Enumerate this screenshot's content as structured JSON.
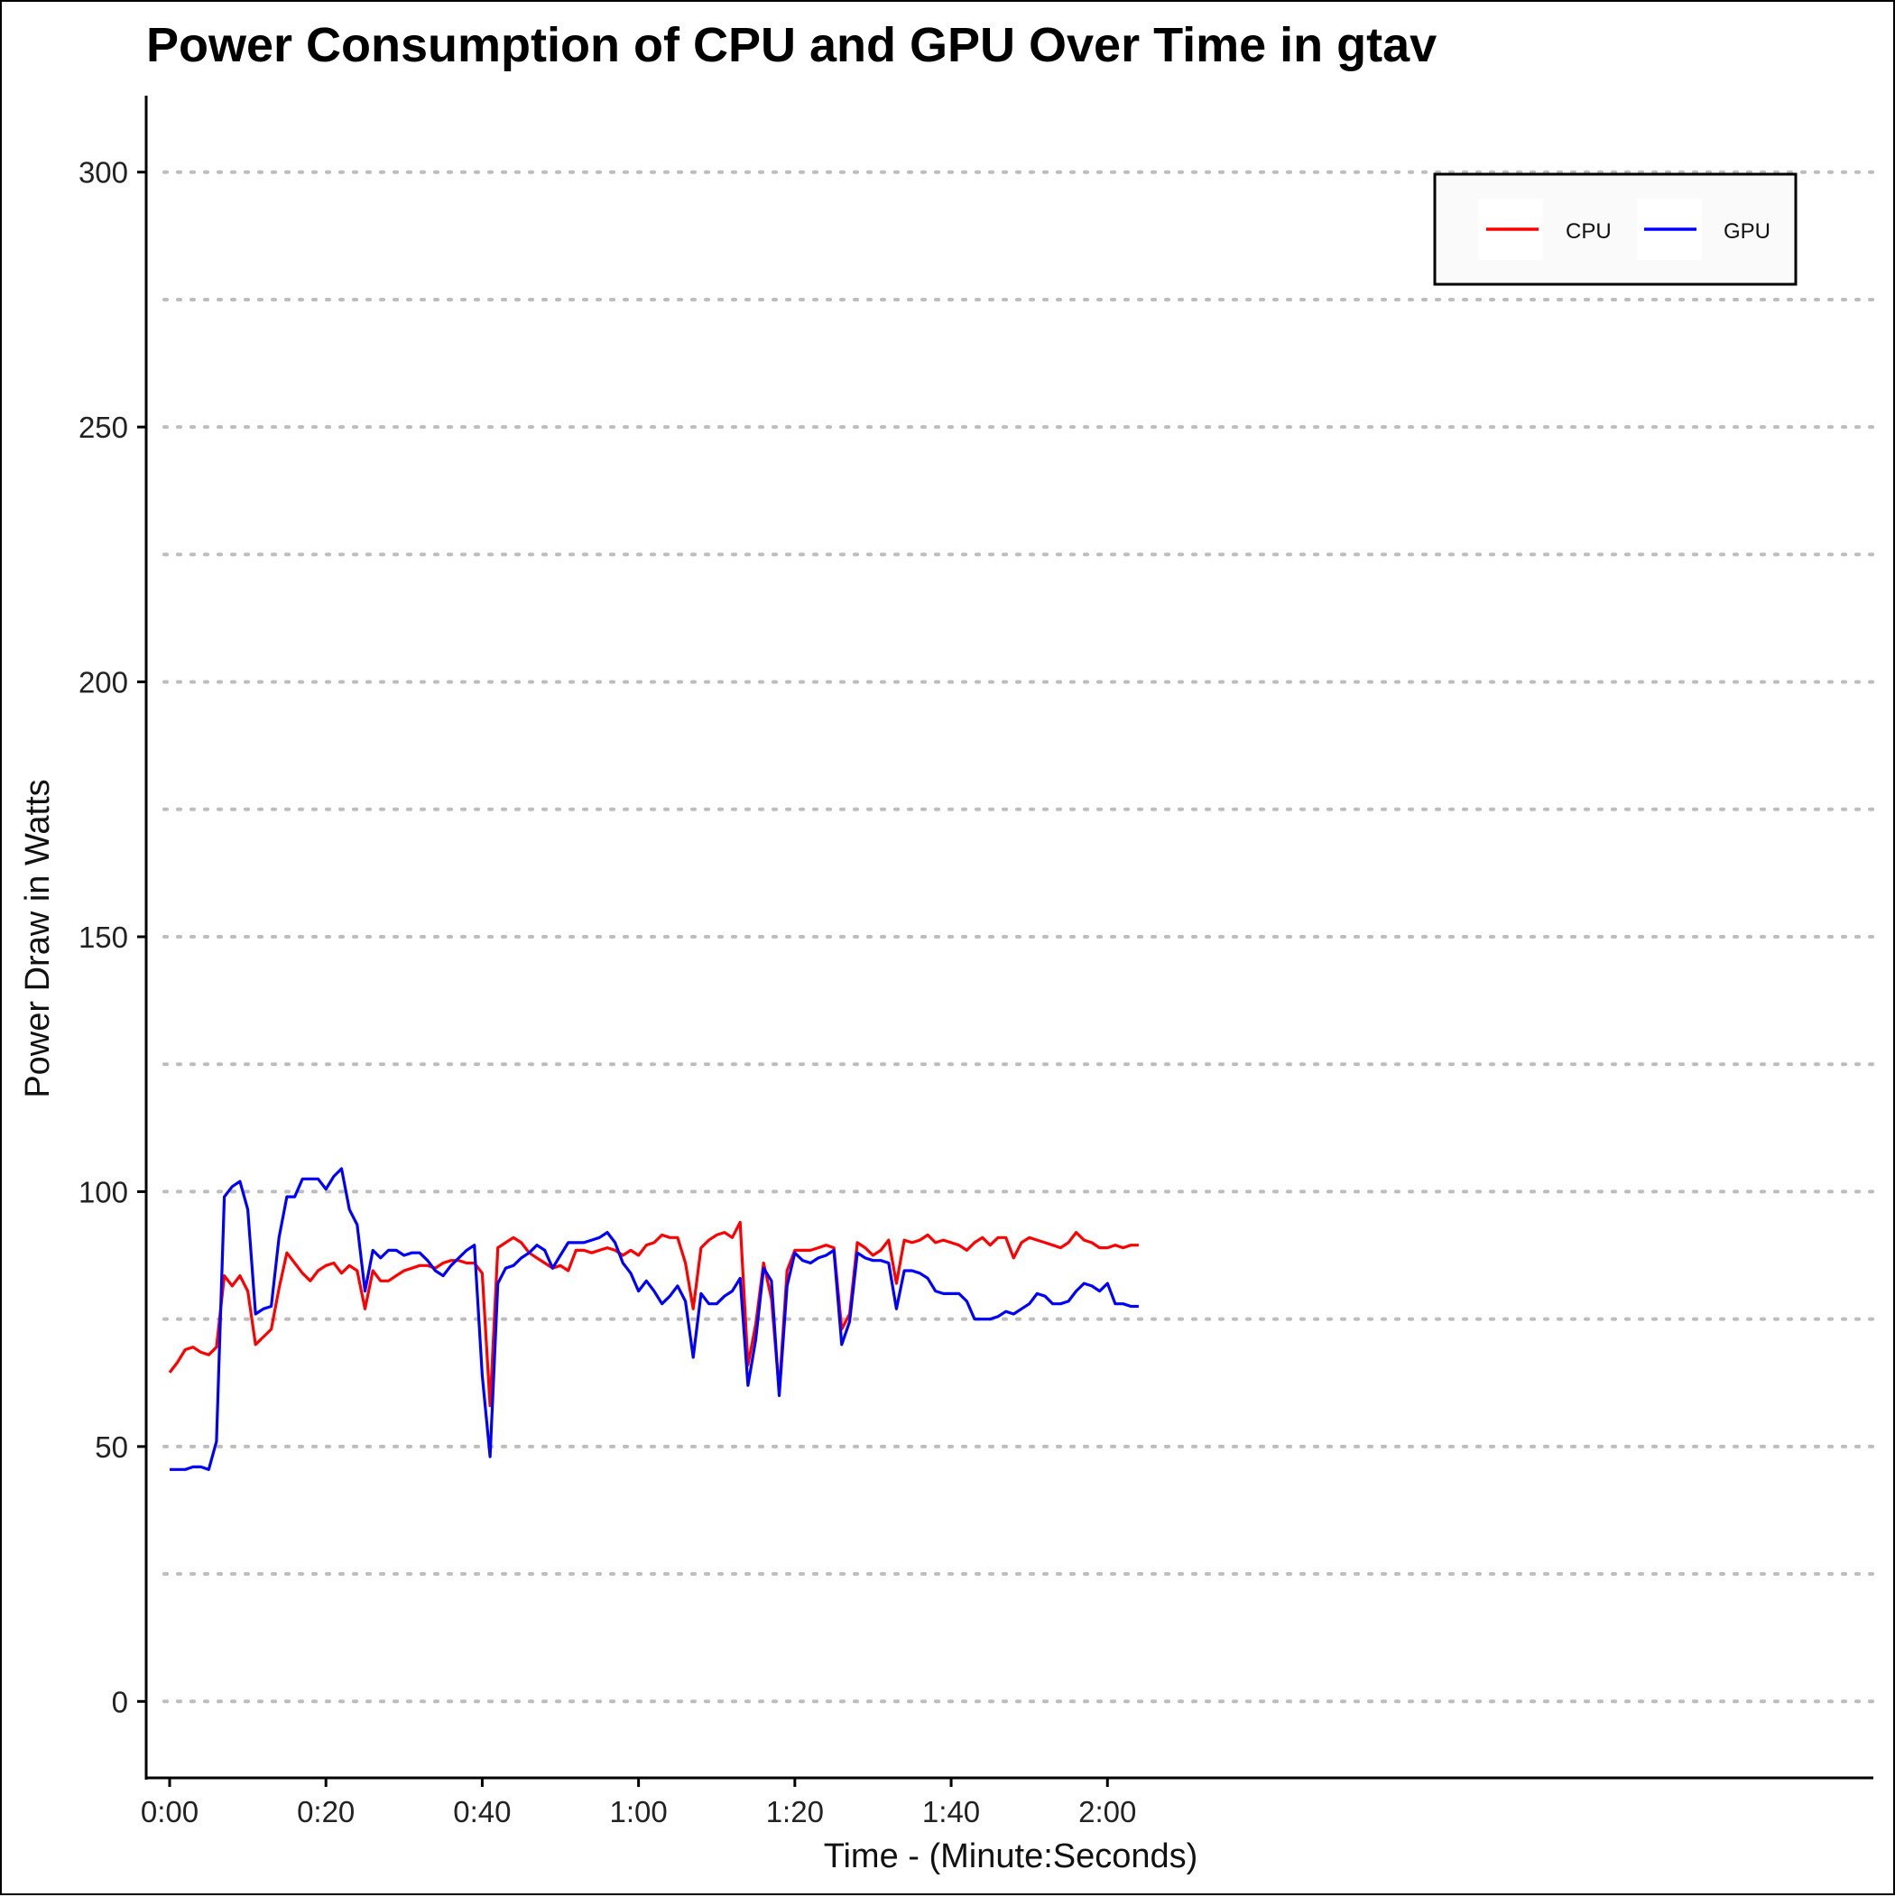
{
  "chart_data": {
    "type": "line",
    "title": "Power Consumption of CPU and GPU Over Time in gtav",
    "xlabel": "Time - (Minute:Seconds)",
    "ylabel": "Power Draw in Watts",
    "xlim": [
      -3,
      218
    ],
    "ylim": [
      -15,
      315
    ],
    "x_ticks": [
      0,
      20,
      40,
      60,
      80,
      100,
      120
    ],
    "x_tick_labels": [
      "0:00",
      "0:20",
      "0:40",
      "1:00",
      "1:20",
      "1:40",
      "2:00"
    ],
    "y_ticks": [
      0,
      50,
      100,
      150,
      200,
      250,
      300
    ],
    "y_tick_labels": [
      "0",
      "50",
      "100",
      "150",
      "200",
      "250",
      "300"
    ],
    "y_minor_grid": [
      25,
      75,
      125,
      175,
      225,
      275
    ],
    "grid": "horizontal dotted",
    "legend_position": "top-right",
    "series": [
      {
        "name": "CPU",
        "color": "#ff0000",
        "points": [
          [
            0,
            64.5
          ],
          [
            1,
            66.5
          ],
          [
            2,
            69
          ],
          [
            3,
            69.5
          ],
          [
            4,
            68.5
          ],
          [
            5,
            68
          ],
          [
            6,
            69.5
          ],
          [
            7,
            83.5
          ],
          [
            8,
            81.5
          ],
          [
            9,
            83.5
          ],
          [
            10,
            80.5
          ],
          [
            11,
            70
          ],
          [
            12,
            71.5
          ],
          [
            13,
            73
          ],
          [
            14,
            81
          ],
          [
            15,
            88
          ],
          [
            16,
            86
          ],
          [
            17,
            84
          ],
          [
            18,
            82.5
          ],
          [
            19,
            84.5
          ],
          [
            20,
            85.5
          ],
          [
            21,
            86
          ],
          [
            22,
            84
          ],
          [
            23,
            85.5
          ],
          [
            24,
            84.5
          ],
          [
            25,
            77
          ],
          [
            26,
            84.5
          ],
          [
            27,
            82.5
          ],
          [
            28,
            82.5
          ],
          [
            29,
            83.5
          ],
          [
            30,
            84.5
          ],
          [
            31,
            85
          ],
          [
            32,
            85.5
          ],
          [
            33,
            85.5
          ],
          [
            34,
            85
          ],
          [
            35,
            86
          ],
          [
            36,
            86.5
          ],
          [
            37,
            86.5
          ],
          [
            38,
            86
          ],
          [
            39,
            86
          ],
          [
            40,
            84
          ],
          [
            41,
            58
          ],
          [
            42,
            89
          ],
          [
            43,
            90
          ],
          [
            44,
            91
          ],
          [
            45,
            90
          ],
          [
            46,
            88
          ],
          [
            47,
            87
          ],
          [
            48,
            86
          ],
          [
            49,
            85
          ],
          [
            50,
            85.5
          ],
          [
            51,
            84.5
          ],
          [
            52,
            88.5
          ],
          [
            53,
            88.5
          ],
          [
            54,
            88
          ],
          [
            55,
            88.5
          ],
          [
            56,
            89
          ],
          [
            57,
            88.5
          ],
          [
            58,
            87.5
          ],
          [
            59,
            88.5
          ],
          [
            60,
            87.5
          ],
          [
            61,
            89.5
          ],
          [
            62,
            90
          ],
          [
            63,
            91.5
          ],
          [
            64,
            91
          ],
          [
            65,
            91
          ],
          [
            66,
            86
          ],
          [
            67,
            77
          ],
          [
            68,
            89
          ],
          [
            69,
            90.5
          ],
          [
            70,
            91.5
          ],
          [
            71,
            92
          ],
          [
            72,
            91
          ],
          [
            73,
            94
          ],
          [
            74,
            66
          ],
          [
            75,
            74
          ],
          [
            76,
            86
          ],
          [
            77,
            79
          ],
          [
            78,
            61
          ],
          [
            79,
            84.5
          ],
          [
            80,
            88.5
          ],
          [
            81,
            88.5
          ],
          [
            82,
            88.5
          ],
          [
            83,
            89
          ],
          [
            84,
            89.5
          ],
          [
            85,
            89
          ],
          [
            86,
            73
          ],
          [
            87,
            76
          ],
          [
            88,
            90
          ],
          [
            89,
            89
          ],
          [
            90,
            87.5
          ],
          [
            91,
            88.5
          ],
          [
            92,
            90.5
          ],
          [
            93,
            82
          ],
          [
            94,
            90.5
          ],
          [
            95,
            90
          ],
          [
            96,
            90.5
          ],
          [
            97,
            91.5
          ],
          [
            98,
            90
          ],
          [
            99,
            90.5
          ],
          [
            100,
            90
          ],
          [
            101,
            89.5
          ],
          [
            102,
            88.5
          ],
          [
            103,
            90
          ],
          [
            104,
            91
          ],
          [
            105,
            89.5
          ],
          [
            106,
            91
          ],
          [
            107,
            91
          ],
          [
            108,
            87
          ],
          [
            109,
            90
          ],
          [
            110,
            91
          ],
          [
            111,
            90.5
          ],
          [
            112,
            90
          ],
          [
            113,
            89.5
          ],
          [
            114,
            89
          ],
          [
            115,
            90
          ],
          [
            116,
            92
          ],
          [
            117,
            90.5
          ],
          [
            118,
            90
          ],
          [
            119,
            89
          ],
          [
            120,
            89
          ],
          [
            121,
            89.5
          ],
          [
            122,
            89
          ],
          [
            123,
            89.5
          ],
          [
            124,
            89.5
          ]
        ]
      },
      {
        "name": "GPU",
        "color": "#0000ff",
        "points": [
          [
            0,
            45.5
          ],
          [
            1,
            45.5
          ],
          [
            2,
            45.5
          ],
          [
            3,
            46
          ],
          [
            4,
            46
          ],
          [
            5,
            45.5
          ],
          [
            6,
            51
          ],
          [
            7,
            99
          ],
          [
            8,
            101
          ],
          [
            9,
            102
          ],
          [
            10,
            96.5
          ],
          [
            11,
            76
          ],
          [
            12,
            77
          ],
          [
            13,
            77.5
          ],
          [
            14,
            91
          ],
          [
            15,
            99
          ],
          [
            16,
            99
          ],
          [
            17,
            102.5
          ],
          [
            18,
            102.5
          ],
          [
            19,
            102.5
          ],
          [
            20,
            100.5
          ],
          [
            21,
            103
          ],
          [
            22,
            104.5
          ],
          [
            23,
            96.5
          ],
          [
            24,
            93.5
          ],
          [
            25,
            80.5
          ],
          [
            26,
            88.5
          ],
          [
            27,
            87
          ],
          [
            28,
            88.5
          ],
          [
            29,
            88.5
          ],
          [
            30,
            87.5
          ],
          [
            31,
            88
          ],
          [
            32,
            88
          ],
          [
            33,
            86.5
          ],
          [
            34,
            84.5
          ],
          [
            35,
            83.5
          ],
          [
            36,
            85.5
          ],
          [
            37,
            87
          ],
          [
            38,
            88.5
          ],
          [
            39,
            89.5
          ],
          [
            40,
            64
          ],
          [
            41,
            48
          ],
          [
            42,
            82
          ],
          [
            43,
            85
          ],
          [
            44,
            85.5
          ],
          [
            45,
            87
          ],
          [
            46,
            88
          ],
          [
            47,
            89.5
          ],
          [
            48,
            88.5
          ],
          [
            49,
            85
          ],
          [
            50,
            87.5
          ],
          [
            51,
            90
          ],
          [
            52,
            90
          ],
          [
            53,
            90
          ],
          [
            54,
            90.5
          ],
          [
            55,
            91
          ],
          [
            56,
            92
          ],
          [
            57,
            90
          ],
          [
            58,
            86
          ],
          [
            59,
            84
          ],
          [
            60,
            80.5
          ],
          [
            61,
            82.5
          ],
          [
            62,
            80.5
          ],
          [
            63,
            78
          ],
          [
            64,
            79.5
          ],
          [
            65,
            81.5
          ],
          [
            66,
            78.5
          ],
          [
            67,
            67.5
          ],
          [
            68,
            80
          ],
          [
            69,
            78
          ],
          [
            70,
            78
          ],
          [
            71,
            79.5
          ],
          [
            72,
            80.5
          ],
          [
            73,
            83
          ],
          [
            74,
            62
          ],
          [
            75,
            71
          ],
          [
            76,
            85
          ],
          [
            77,
            82.5
          ],
          [
            78,
            60
          ],
          [
            79,
            81.5
          ],
          [
            80,
            88
          ],
          [
            81,
            86.5
          ],
          [
            82,
            86
          ],
          [
            83,
            87
          ],
          [
            84,
            87.5
          ],
          [
            85,
            88.5
          ],
          [
            86,
            70
          ],
          [
            87,
            74.5
          ],
          [
            88,
            88
          ],
          [
            89,
            87
          ],
          [
            90,
            86.5
          ],
          [
            91,
            86.5
          ],
          [
            92,
            86
          ],
          [
            93,
            77
          ],
          [
            94,
            84.5
          ],
          [
            95,
            84.5
          ],
          [
            96,
            84
          ],
          [
            97,
            83
          ],
          [
            98,
            80.5
          ],
          [
            99,
            80
          ],
          [
            100,
            80
          ],
          [
            101,
            80
          ],
          [
            102,
            78.5
          ],
          [
            103,
            75
          ],
          [
            104,
            75
          ],
          [
            105,
            75
          ],
          [
            106,
            75.5
          ],
          [
            107,
            76.5
          ],
          [
            108,
            76
          ],
          [
            109,
            77
          ],
          [
            110,
            78
          ],
          [
            111,
            80
          ],
          [
            112,
            79.5
          ],
          [
            113,
            78
          ],
          [
            114,
            78
          ],
          [
            115,
            78.5
          ],
          [
            116,
            80.5
          ],
          [
            117,
            82
          ],
          [
            118,
            81.5
          ],
          [
            119,
            80.5
          ],
          [
            120,
            82
          ],
          [
            121,
            78
          ],
          [
            122,
            78
          ],
          [
            123,
            77.5
          ],
          [
            124,
            77.5
          ]
        ]
      }
    ]
  }
}
